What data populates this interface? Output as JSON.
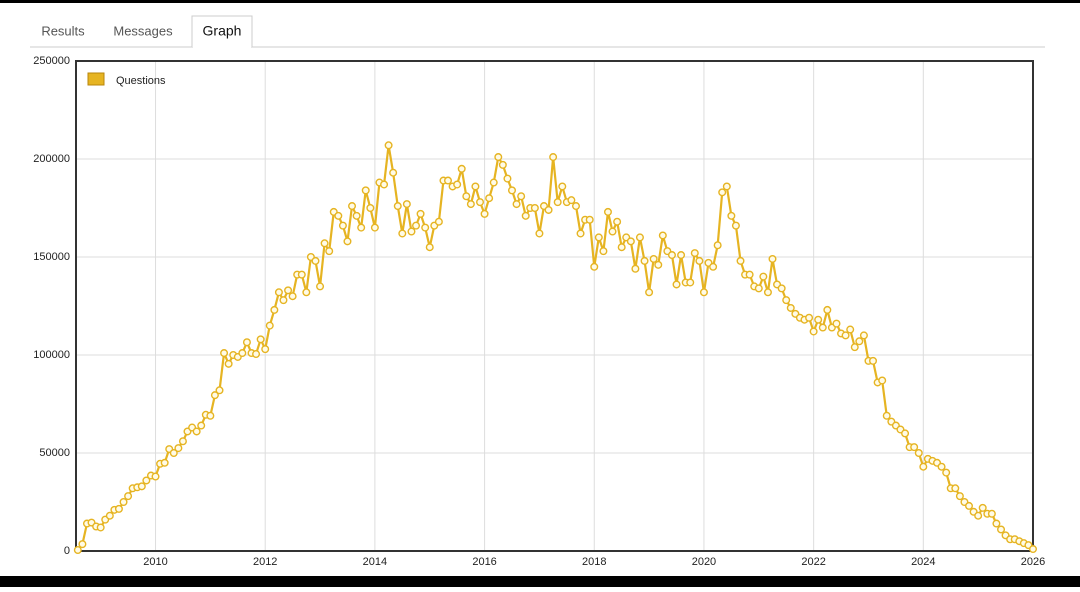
{
  "tabs": [
    "Results",
    "Messages",
    "Graph"
  ],
  "active_tab": 2,
  "chart_data": {
    "type": "line",
    "x": [
      2008.583,
      2008.667,
      2008.75,
      2008.833,
      2008.917,
      2009,
      2009.083,
      2009.167,
      2009.25,
      2009.333,
      2009.417,
      2009.5,
      2009.583,
      2009.667,
      2009.75,
      2009.833,
      2009.917,
      2010,
      2010.083,
      2010.167,
      2010.25,
      2010.333,
      2010.417,
      2010.5,
      2010.583,
      2010.667,
      2010.75,
      2010.833,
      2010.917,
      2011,
      2011.083,
      2011.167,
      2011.25,
      2011.333,
      2011.417,
      2011.5,
      2011.583,
      2011.667,
      2011.75,
      2011.833,
      2011.917,
      2012,
      2012.083,
      2012.167,
      2012.25,
      2012.333,
      2012.417,
      2012.5,
      2012.583,
      2012.667,
      2012.75,
      2012.833,
      2012.917,
      2013,
      2013.083,
      2013.167,
      2013.25,
      2013.333,
      2013.417,
      2013.5,
      2013.583,
      2013.667,
      2013.75,
      2013.833,
      2013.917,
      2014,
      2014.083,
      2014.167,
      2014.25,
      2014.333,
      2014.417,
      2014.5,
      2014.583,
      2014.667,
      2014.75,
      2014.833,
      2014.917,
      2015,
      2015.083,
      2015.167,
      2015.25,
      2015.333,
      2015.417,
      2015.5,
      2015.583,
      2015.667,
      2015.75,
      2015.833,
      2015.917,
      2016,
      2016.083,
      2016.167,
      2016.25,
      2016.333,
      2016.417,
      2016.5,
      2016.583,
      2016.667,
      2016.75,
      2016.833,
      2016.917,
      2017,
      2017.083,
      2017.167,
      2017.25,
      2017.333,
      2017.417,
      2017.5,
      2017.583,
      2017.667,
      2017.75,
      2017.833,
      2017.917,
      2018,
      2018.083,
      2018.167,
      2018.25,
      2018.333,
      2018.417,
      2018.5,
      2018.583,
      2018.667,
      2018.75,
      2018.833,
      2018.917,
      2019,
      2019.083,
      2019.167,
      2019.25,
      2019.333,
      2019.417,
      2019.5,
      2019.583,
      2019.667,
      2019.75,
      2019.833,
      2019.917,
      2020,
      2020.083,
      2020.167,
      2020.25,
      2020.333,
      2020.417,
      2020.5,
      2020.583,
      2020.667,
      2020.75,
      2020.833,
      2020.917,
      2021,
      2021.083,
      2021.167,
      2021.25,
      2021.333,
      2021.417,
      2021.5,
      2021.583,
      2021.667,
      2021.75,
      2021.833,
      2021.917,
      2022,
      2022.083,
      2022.167,
      2022.25,
      2022.333,
      2022.417,
      2022.5,
      2022.583,
      2022.667,
      2022.75,
      2022.833,
      2022.917,
      2023,
      2023.083,
      2023.167,
      2023.25,
      2023.333,
      2023.417,
      2023.5,
      2023.583,
      2023.667,
      2023.75,
      2023.833,
      2023.917,
      2024,
      2024.083,
      2024.167,
      2024.25,
      2024.333,
      2024.417,
      2024.5,
      2024.583,
      2024.667,
      2024.75,
      2024.833,
      2024.917,
      2025,
      2025.083,
      2025.167,
      2025.25,
      2025.333,
      2025.417,
      2025.5,
      2025.583,
      2025.667,
      2025.75,
      2025.833,
      2025.917,
      2026
    ],
    "series": [
      {
        "name": "Questions",
        "color": "#e6b422",
        "values": [
          500,
          3500,
          14000,
          14500,
          12500,
          12000,
          16000,
          18000,
          21000,
          21500,
          25000,
          28000,
          32000,
          32500,
          33000,
          36000,
          38500,
          38000,
          44500,
          45000,
          52000,
          50000,
          52500,
          56000,
          61000,
          63000,
          61000,
          64000,
          69500,
          69000,
          79500,
          82000,
          101000,
          95500,
          100000,
          99000,
          101000,
          106500,
          101000,
          100500,
          108000,
          103000,
          115000,
          123000,
          132000,
          128000,
          133000,
          130000,
          141000,
          141000,
          132000,
          150000,
          148000,
          135000,
          157000,
          153000,
          173000,
          171000,
          166000,
          158000,
          176000,
          171000,
          165000,
          184000,
          175000,
          165000,
          188000,
          187000,
          207000,
          193000,
          176000,
          162000,
          177000,
          163000,
          166000,
          172000,
          165000,
          155000,
          166000,
          168000,
          189000,
          189000,
          186000,
          187000,
          195000,
          181000,
          177000,
          186000,
          178000,
          172000,
          180000,
          188000,
          201000,
          197000,
          190000,
          184000,
          177000,
          181000,
          171000,
          175000,
          175000,
          162000,
          176000,
          174000,
          201000,
          178000,
          186000,
          178000,
          179000,
          176000,
          162000,
          169000,
          169000,
          145000,
          160000,
          153000,
          173000,
          163000,
          168000,
          155000,
          160000,
          158000,
          144000,
          160000,
          148000,
          132000,
          149000,
          146000,
          161000,
          153000,
          151000,
          136000,
          151000,
          137000,
          137000,
          152000,
          148000,
          132000,
          147000,
          145000,
          156000,
          183000,
          186000,
          171000,
          166000,
          148000,
          141000,
          141000,
          135000,
          134000,
          140000,
          132000,
          149000,
          136000,
          134000,
          128000,
          124000,
          121000,
          119000,
          118000,
          119000,
          112000,
          118000,
          114000,
          123000,
          114000,
          116000,
          111000,
          110000,
          113000,
          104000,
          107000,
          110000,
          97000,
          97000,
          86000,
          87000,
          69000,
          66000,
          64000,
          62000,
          60000,
          53000,
          53000,
          50000,
          43000,
          47000,
          46000,
          45000,
          43000,
          40000,
          32000,
          32000,
          28000,
          25000,
          23000,
          20000,
          18000,
          22000,
          19000,
          19000,
          14000,
          11000,
          8000,
          6000,
          6000,
          5000,
          4000,
          3000,
          1000
        ]
      }
    ],
    "xlim": [
      2008.55,
      2026
    ],
    "xticks": [
      2010,
      2012,
      2014,
      2016,
      2018,
      2020,
      2022,
      2024,
      2026
    ],
    "ylim": [
      0,
      250000
    ],
    "yticks": [
      0,
      50000,
      100000,
      150000,
      200000,
      250000
    ],
    "grid": true,
    "legend": "top-left"
  }
}
